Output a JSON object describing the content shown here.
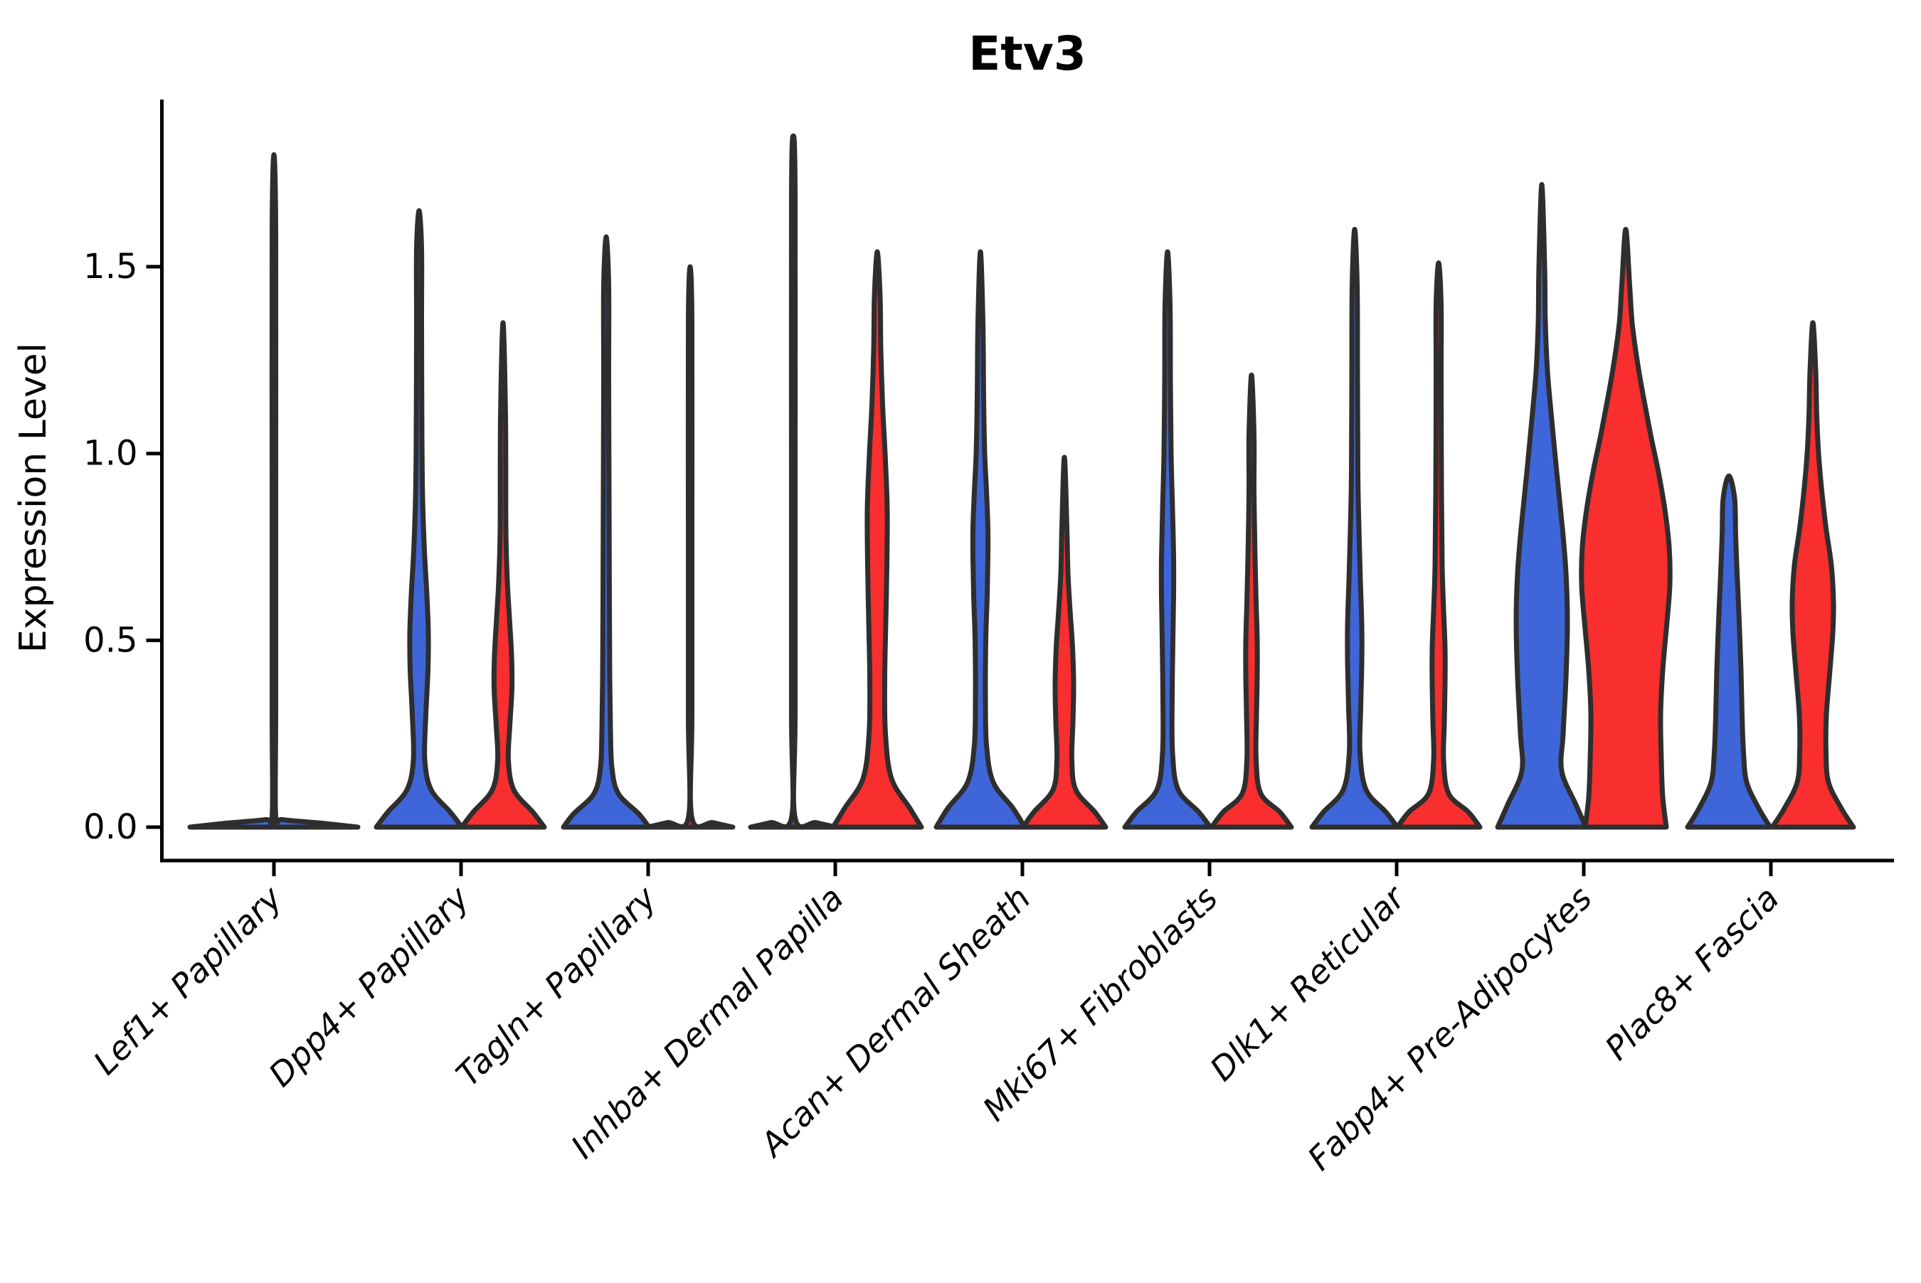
{
  "chart_data": {
    "type": "violin",
    "title": "Etv3",
    "ylabel": "Expression Level",
    "xlabel": "",
    "y_ticks": [
      0.0,
      0.5,
      1.0,
      1.5
    ],
    "y_tick_labels": [
      "0.0",
      "0.5",
      "1.0",
      "1.5"
    ],
    "ylim": [
      -0.09,
      1.95
    ],
    "grid": false,
    "legend_position": "none",
    "categories": [
      "Lef1+ Papillary",
      "Dpp4+ Papillary",
      "Tagln+ Papillary",
      "Inhba+ Dermal Papilla",
      "Acan+ Dermal Sheath",
      "Mki67+ Fibroblasts",
      "Dlk1+ Reticular",
      "Fabp4+ Pre-Adipocytes",
      "Plac8+ Fascia"
    ],
    "series_colors": {
      "blue": "#3f66d9",
      "red": "#f92e2e"
    },
    "outline_color": "#2e2e2e",
    "violins": [
      {
        "category_index": 0,
        "category": "Lef1+ Papillary",
        "series": "blue",
        "solo": true,
        "offset": 0,
        "max_expression": 1.8,
        "profile": [
          [
            0,
            118
          ],
          [
            0.01,
            70
          ],
          [
            0.02,
            12
          ],
          [
            0.03,
            2.5
          ],
          [
            0.3,
            2.5
          ],
          [
            0.9,
            2.5
          ],
          [
            1.6,
            2.5
          ]
        ]
      },
      {
        "category_index": 1,
        "category": "Dpp4+ Papillary",
        "series": "blue",
        "solo": false,
        "offset": -59,
        "max_expression": 1.65,
        "profile": [
          [
            0,
            60
          ],
          [
            0.04,
            44
          ],
          [
            0.1,
            17
          ],
          [
            0.18,
            8
          ],
          [
            0.3,
            9.5
          ],
          [
            0.42,
            12.5
          ],
          [
            0.52,
            13
          ],
          [
            0.62,
            11
          ],
          [
            0.74,
            7.5
          ],
          [
            0.88,
            5
          ],
          [
            1.05,
            4
          ],
          [
            1.35,
            3.5
          ],
          [
            1.55,
            3.5
          ]
        ]
      },
      {
        "category_index": 1,
        "category": "Dpp4+ Papillary",
        "series": "red",
        "solo": false,
        "offset": 59,
        "max_expression": 1.35,
        "profile": [
          [
            0,
            58
          ],
          [
            0.04,
            42
          ],
          [
            0.1,
            15
          ],
          [
            0.18,
            7.5
          ],
          [
            0.27,
            9.5
          ],
          [
            0.37,
            12.5
          ],
          [
            0.46,
            12
          ],
          [
            0.56,
            9
          ],
          [
            0.66,
            6
          ],
          [
            0.8,
            4
          ],
          [
            1.1,
            3.5
          ]
        ]
      },
      {
        "category_index": 2,
        "category": "Tagln+ Papillary",
        "series": "blue",
        "solo": false,
        "offset": -59,
        "max_expression": 1.58,
        "profile": [
          [
            0,
            60
          ],
          [
            0.035,
            46
          ],
          [
            0.09,
            17
          ],
          [
            0.16,
            8
          ],
          [
            0.26,
            6
          ],
          [
            0.4,
            5
          ],
          [
            0.6,
            4.5
          ],
          [
            0.9,
            4
          ],
          [
            1.2,
            3.5
          ],
          [
            1.45,
            3.5
          ]
        ]
      },
      {
        "category_index": 2,
        "category": "Tagln+ Papillary",
        "series": "red",
        "solo": false,
        "offset": 59,
        "max_expression": 1.5,
        "profile": [
          [
            0,
            60
          ],
          [
            0.012,
            32
          ],
          [
            0.025,
            2.5
          ],
          [
            0.3,
            2.5
          ],
          [
            0.8,
            2.5
          ],
          [
            1.35,
            2.5
          ]
        ]
      },
      {
        "category_index": 3,
        "category": "Inhba+ Dermal Papilla",
        "series": "blue",
        "solo": false,
        "offset": -59,
        "max_expression": 1.85,
        "profile": [
          [
            0,
            60
          ],
          [
            0.012,
            32
          ],
          [
            0.025,
            2.5
          ],
          [
            0.3,
            2.5
          ],
          [
            0.9,
            2.5
          ],
          [
            1.7,
            2.5
          ]
        ]
      },
      {
        "category_index": 3,
        "category": "Inhba+ Dermal Papilla",
        "series": "red",
        "solo": false,
        "offset": 59,
        "max_expression": 1.54,
        "profile": [
          [
            0,
            62
          ],
          [
            0.05,
            46
          ],
          [
            0.13,
            20
          ],
          [
            0.25,
            11.5
          ],
          [
            0.4,
            10.5
          ],
          [
            0.55,
            12
          ],
          [
            0.7,
            13.5
          ],
          [
            0.85,
            14
          ],
          [
            1.0,
            11
          ],
          [
            1.13,
            7.5
          ],
          [
            1.28,
            5
          ],
          [
            1.42,
            4
          ]
        ]
      },
      {
        "category_index": 4,
        "category": "Acan+ Dermal Sheath",
        "series": "blue",
        "solo": false,
        "offset": -59,
        "max_expression": 1.54,
        "profile": [
          [
            0,
            62
          ],
          [
            0.05,
            46
          ],
          [
            0.12,
            18
          ],
          [
            0.22,
            8.5
          ],
          [
            0.35,
            7
          ],
          [
            0.5,
            7.5
          ],
          [
            0.62,
            9.5
          ],
          [
            0.72,
            10.5
          ],
          [
            0.8,
            10.5
          ],
          [
            0.9,
            8.5
          ],
          [
            1.0,
            6
          ],
          [
            1.15,
            4.5
          ],
          [
            1.35,
            3.5
          ]
        ]
      },
      {
        "category_index": 4,
        "category": "Acan+ Dermal Sheath",
        "series": "red",
        "solo": false,
        "offset": 59,
        "max_expression": 0.99,
        "profile": [
          [
            0,
            58
          ],
          [
            0.04,
            43
          ],
          [
            0.1,
            16
          ],
          [
            0.18,
            10.5
          ],
          [
            0.28,
            12
          ],
          [
            0.38,
            13
          ],
          [
            0.48,
            11.5
          ],
          [
            0.58,
            8
          ],
          [
            0.68,
            5
          ],
          [
            0.8,
            3.5
          ]
        ]
      },
      {
        "category_index": 5,
        "category": "Mki67+ Fibroblasts",
        "series": "blue",
        "solo": false,
        "offset": -59,
        "max_expression": 1.54,
        "profile": [
          [
            0,
            60
          ],
          [
            0.04,
            44
          ],
          [
            0.1,
            15
          ],
          [
            0.2,
            7
          ],
          [
            0.35,
            6.5
          ],
          [
            0.5,
            7.5
          ],
          [
            0.62,
            8.5
          ],
          [
            0.72,
            8.5
          ],
          [
            0.85,
            7
          ],
          [
            1.0,
            5
          ],
          [
            1.2,
            4
          ],
          [
            1.4,
            3.5
          ]
        ]
      },
      {
        "category_index": 5,
        "category": "Mki67+ Fibroblasts",
        "series": "red",
        "solo": false,
        "offset": 59,
        "max_expression": 1.21,
        "profile": [
          [
            0,
            56
          ],
          [
            0.04,
            40
          ],
          [
            0.09,
            13
          ],
          [
            0.18,
            6.5
          ],
          [
            0.3,
            7
          ],
          [
            0.4,
            8
          ],
          [
            0.5,
            8
          ],
          [
            0.6,
            6.5
          ],
          [
            0.72,
            5
          ],
          [
            0.9,
            3.5
          ],
          [
            1.05,
            3.5
          ]
        ]
      },
      {
        "category_index": 6,
        "category": "Dlk1+ Reticular",
        "series": "blue",
        "solo": false,
        "offset": -59,
        "max_expression": 1.6,
        "profile": [
          [
            0,
            60
          ],
          [
            0.04,
            44
          ],
          [
            0.1,
            16
          ],
          [
            0.2,
            7.5
          ],
          [
            0.32,
            8.5
          ],
          [
            0.44,
            10
          ],
          [
            0.54,
            10
          ],
          [
            0.66,
            8
          ],
          [
            0.8,
            6
          ],
          [
            0.95,
            4.5
          ],
          [
            1.2,
            4
          ],
          [
            1.45,
            3.5
          ]
        ]
      },
      {
        "category_index": 6,
        "category": "Dlk1+ Reticular",
        "series": "red",
        "solo": false,
        "offset": 59,
        "max_expression": 1.51,
        "profile": [
          [
            0,
            58
          ],
          [
            0.04,
            42
          ],
          [
            0.09,
            14
          ],
          [
            0.18,
            7
          ],
          [
            0.28,
            8
          ],
          [
            0.38,
            9
          ],
          [
            0.48,
            9
          ],
          [
            0.58,
            7
          ],
          [
            0.7,
            5
          ],
          [
            0.9,
            4
          ],
          [
            1.2,
            3.5
          ],
          [
            1.4,
            3.5
          ]
        ]
      },
      {
        "category_index": 7,
        "category": "Fabp4+ Pre-Adipocytes",
        "series": "blue",
        "solo": false,
        "offset": -59,
        "max_expression": 1.72,
        "profile": [
          [
            0,
            62
          ],
          [
            0.06,
            48
          ],
          [
            0.15,
            28
          ],
          [
            0.25,
            30
          ],
          [
            0.4,
            34
          ],
          [
            0.55,
            36
          ],
          [
            0.68,
            34
          ],
          [
            0.8,
            29
          ],
          [
            0.95,
            21
          ],
          [
            1.1,
            13.5
          ],
          [
            1.22,
            8
          ],
          [
            1.35,
            5
          ],
          [
            1.5,
            4
          ]
        ]
      },
      {
        "category_index": 7,
        "category": "Fabp4+ Pre-Adipocytes",
        "series": "red",
        "solo": false,
        "offset": 59,
        "max_expression": 1.6,
        "profile": [
          [
            0,
            57
          ],
          [
            0.08,
            52
          ],
          [
            0.18,
            50
          ],
          [
            0.3,
            49
          ],
          [
            0.42,
            52
          ],
          [
            0.55,
            58
          ],
          [
            0.65,
            62
          ],
          [
            0.75,
            61
          ],
          [
            0.85,
            55
          ],
          [
            0.95,
            46
          ],
          [
            1.05,
            35
          ],
          [
            1.15,
            25
          ],
          [
            1.25,
            16
          ],
          [
            1.35,
            9
          ],
          [
            1.45,
            5.5
          ]
        ]
      },
      {
        "category_index": 8,
        "category": "Plac8+ Fascia",
        "series": "blue",
        "solo": false,
        "offset": -59,
        "max_expression": 0.94,
        "profile": [
          [
            0,
            58
          ],
          [
            0.05,
            42
          ],
          [
            0.12,
            25
          ],
          [
            0.2,
            20.5
          ],
          [
            0.3,
            18.5
          ],
          [
            0.42,
            17
          ],
          [
            0.55,
            14.5
          ],
          [
            0.68,
            11.5
          ],
          [
            0.78,
            9.5
          ],
          [
            0.88,
            8
          ]
        ]
      },
      {
        "category_index": 8,
        "category": "Plac8+ Fascia",
        "series": "red",
        "solo": false,
        "offset": 59,
        "max_expression": 1.35,
        "profile": [
          [
            0,
            57
          ],
          [
            0.05,
            40
          ],
          [
            0.12,
            22
          ],
          [
            0.2,
            18.5
          ],
          [
            0.3,
            19
          ],
          [
            0.42,
            24
          ],
          [
            0.52,
            28
          ],
          [
            0.6,
            29
          ],
          [
            0.7,
            26
          ],
          [
            0.8,
            18.5
          ],
          [
            0.9,
            12.5
          ],
          [
            1.0,
            8
          ],
          [
            1.1,
            5.5
          ],
          [
            1.22,
            4
          ]
        ]
      }
    ]
  }
}
